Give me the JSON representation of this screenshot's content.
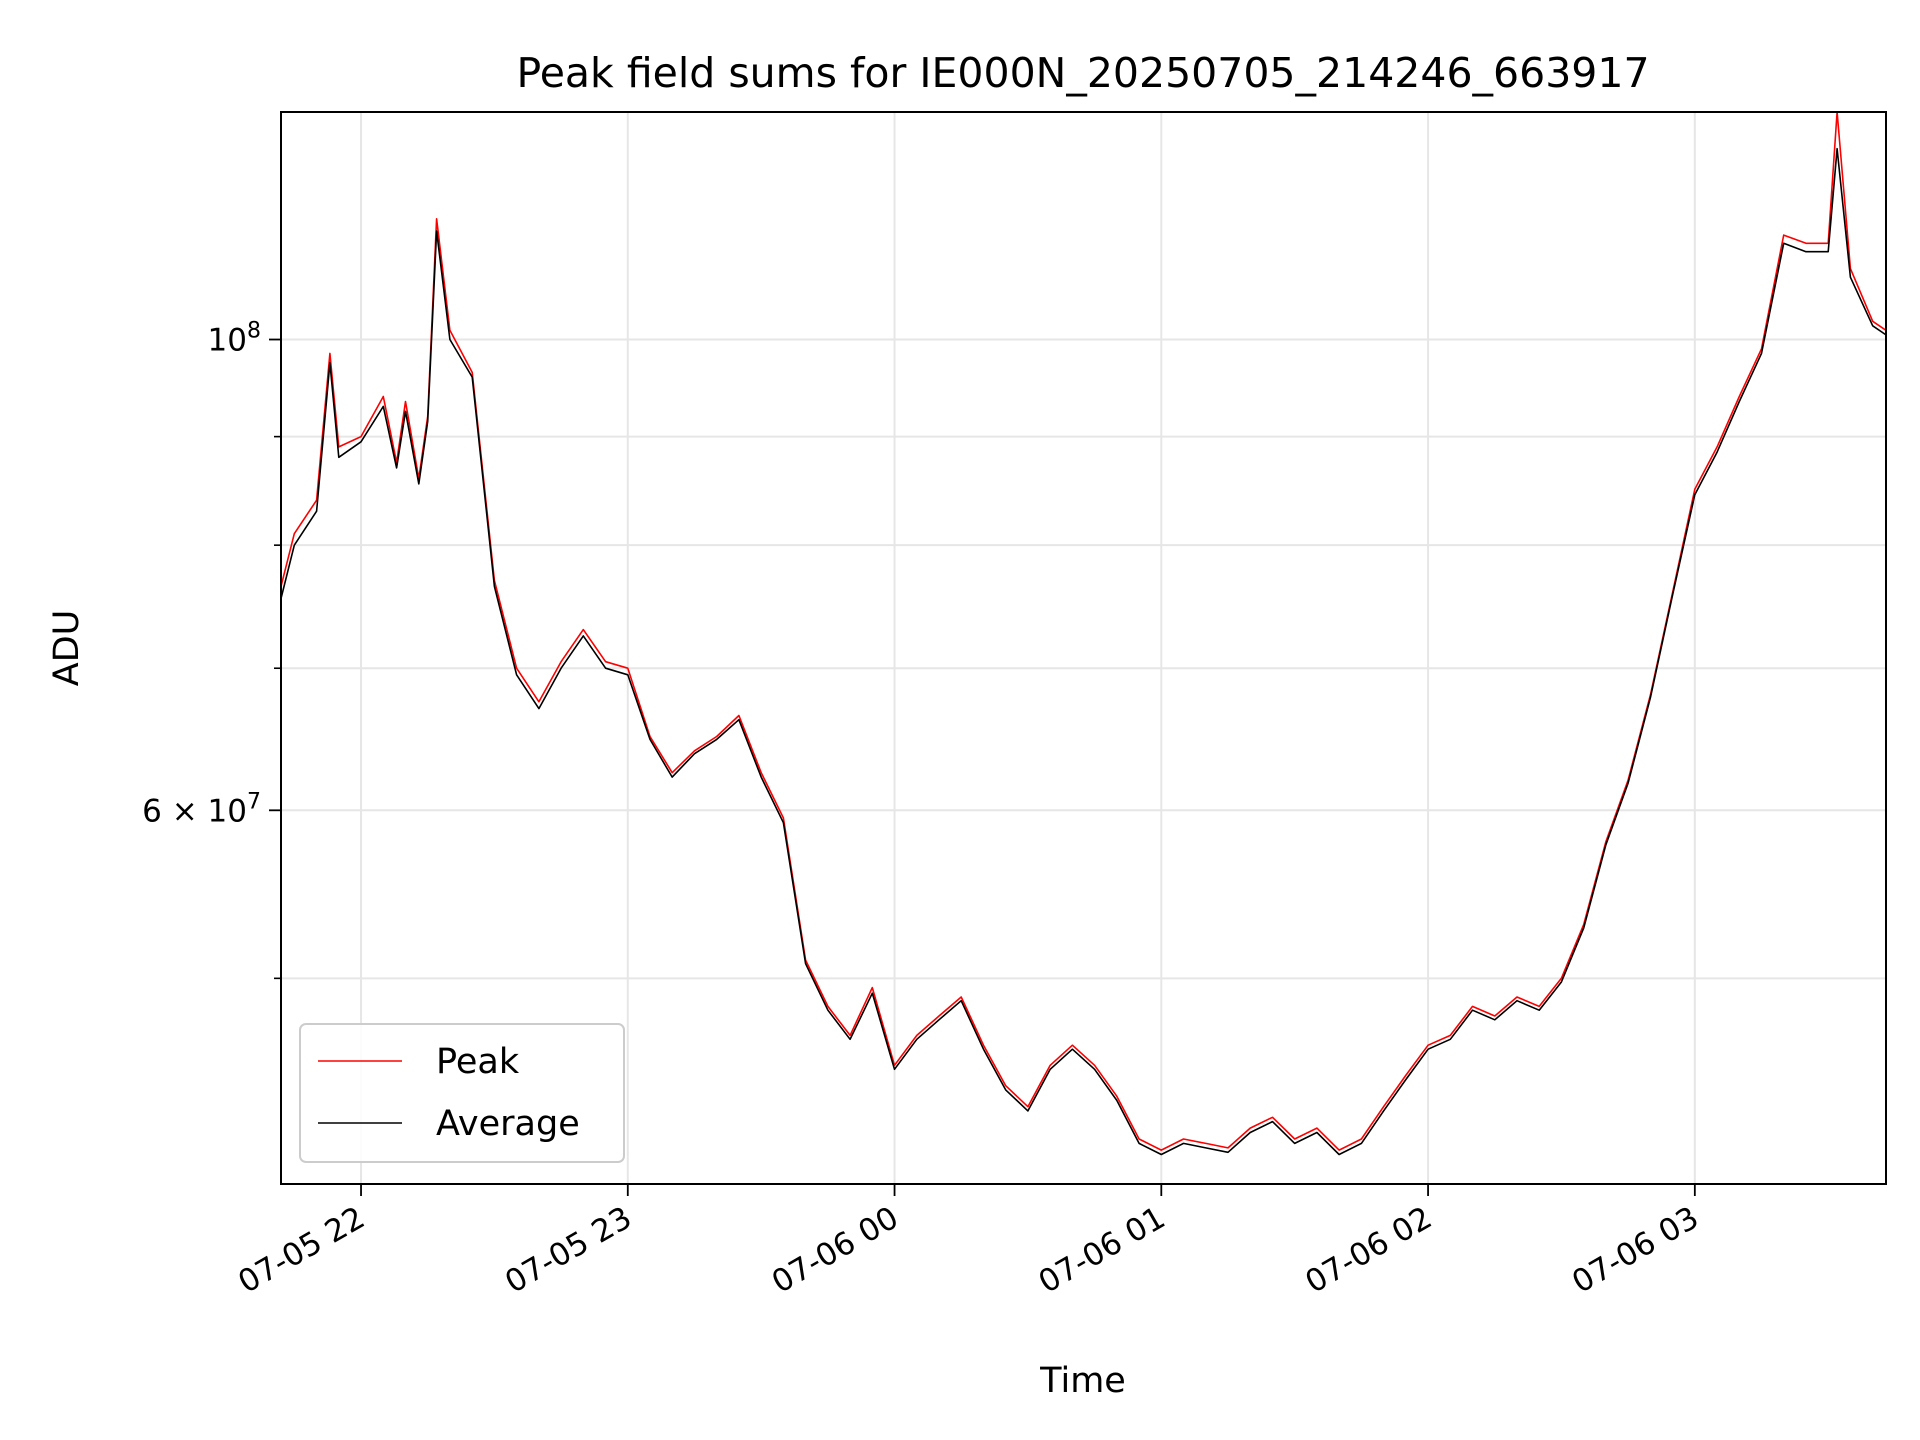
{
  "chart_data": {
    "type": "line",
    "title": "Peak field sums for IE000N_20250705_214246_663917",
    "xlabel": "Time",
    "ylabel": "ADU",
    "y_scale": "log",
    "grid": true,
    "legend_position": "lower-left",
    "x_range": [
      "2025-07-05 21:42",
      "2025-07-06 03:43"
    ],
    "ylim": [
      40000000,
      128000000
    ],
    "x_ticks": [
      {
        "at": "2025-07-05 22:00",
        "label": "07-05 22"
      },
      {
        "at": "2025-07-05 23:00",
        "label": "07-05 23"
      },
      {
        "at": "2025-07-06 00:00",
        "label": "07-06 00"
      },
      {
        "at": "2025-07-06 01:00",
        "label": "07-06 01"
      },
      {
        "at": "2025-07-06 02:00",
        "label": "07-06 02"
      },
      {
        "at": "2025-07-06 03:00",
        "label": "07-06 03"
      }
    ],
    "y_ticks": [
      {
        "value": 60000000,
        "base": "6 × 10",
        "exp": "7"
      },
      {
        "value": 100000000,
        "base": "10",
        "exp": "8"
      }
    ],
    "y_minor_ticks": [
      50000000,
      70000000,
      80000000,
      90000000
    ],
    "series": [
      {
        "name": "Peak",
        "color": "#ff0000",
        "x": [
          "2025-07-05 21:42",
          "2025-07-05 21:45",
          "2025-07-05 21:50",
          "2025-07-05 21:53",
          "2025-07-05 21:55",
          "2025-07-05 22:00",
          "2025-07-05 22:05",
          "2025-07-05 22:08",
          "2025-07-05 22:10",
          "2025-07-05 22:13",
          "2025-07-05 22:15",
          "2025-07-05 22:17",
          "2025-07-05 22:20",
          "2025-07-05 22:25",
          "2025-07-05 22:30",
          "2025-07-05 22:35",
          "2025-07-05 22:40",
          "2025-07-05 22:45",
          "2025-07-05 22:50",
          "2025-07-05 22:55",
          "2025-07-05 23:00",
          "2025-07-05 23:05",
          "2025-07-05 23:10",
          "2025-07-05 23:15",
          "2025-07-05 23:20",
          "2025-07-05 23:25",
          "2025-07-05 23:30",
          "2025-07-05 23:35",
          "2025-07-05 23:40",
          "2025-07-05 23:45",
          "2025-07-05 23:50",
          "2025-07-05 23:55",
          "2025-07-06 00:00",
          "2025-07-06 00:05",
          "2025-07-06 00:10",
          "2025-07-06 00:15",
          "2025-07-06 00:20",
          "2025-07-06 00:25",
          "2025-07-06 00:30",
          "2025-07-06 00:35",
          "2025-07-06 00:40",
          "2025-07-06 00:45",
          "2025-07-06 00:50",
          "2025-07-06 00:55",
          "2025-07-06 01:00",
          "2025-07-06 01:05",
          "2025-07-06 01:10",
          "2025-07-06 01:15",
          "2025-07-06 01:20",
          "2025-07-06 01:25",
          "2025-07-06 01:30",
          "2025-07-06 01:35",
          "2025-07-06 01:40",
          "2025-07-06 01:45",
          "2025-07-06 01:50",
          "2025-07-06 01:55",
          "2025-07-06 02:00",
          "2025-07-06 02:05",
          "2025-07-06 02:10",
          "2025-07-06 02:15",
          "2025-07-06 02:20",
          "2025-07-06 02:25",
          "2025-07-06 02:30",
          "2025-07-06 02:35",
          "2025-07-06 02:40",
          "2025-07-06 02:45",
          "2025-07-06 02:50",
          "2025-07-06 02:55",
          "2025-07-06 03:00",
          "2025-07-06 03:05",
          "2025-07-06 03:10",
          "2025-07-06 03:15",
          "2025-07-06 03:20",
          "2025-07-06 03:25",
          "2025-07-06 03:30",
          "2025-07-06 03:32",
          "2025-07-06 03:35",
          "2025-07-06 03:40",
          "2025-07-06 03:43"
        ],
        "values": [
          76500000,
          81000000,
          84000000,
          98500000,
          89000000,
          90000000,
          94000000,
          87500000,
          93500000,
          86000000,
          92000000,
          114000000,
          101000000,
          96500000,
          77000000,
          70000000,
          67500000,
          70500000,
          73000000,
          70500000,
          70000000,
          65000000,
          62500000,
          64000000,
          65000000,
          66500000,
          62500000,
          59500000,
          51000000,
          48500000,
          47000000,
          49500000,
          45500000,
          47000000,
          48000000,
          49000000,
          46500000,
          44500000,
          43500000,
          45500000,
          46500000,
          45500000,
          44000000,
          42000000,
          41500000,
          42000000,
          41800000,
          41600000,
          42500000,
          43000000,
          42000000,
          42500000,
          41500000,
          42000000,
          43500000,
          45000000,
          46500000,
          47000000,
          48500000,
          48000000,
          49000000,
          48500000,
          50000000,
          53000000,
          58000000,
          62000000,
          68000000,
          76000000,
          85000000,
          89000000,
          94000000,
          99000000,
          112000000,
          111000000,
          111000000,
          128000000,
          108000000,
          102000000,
          101000000
        ]
      },
      {
        "name": "Average",
        "color": "#000000",
        "x": [
          "2025-07-05 21:42",
          "2025-07-05 21:45",
          "2025-07-05 21:50",
          "2025-07-05 21:53",
          "2025-07-05 21:55",
          "2025-07-05 22:00",
          "2025-07-05 22:05",
          "2025-07-05 22:08",
          "2025-07-05 22:10",
          "2025-07-05 22:13",
          "2025-07-05 22:15",
          "2025-07-05 22:17",
          "2025-07-05 22:20",
          "2025-07-05 22:25",
          "2025-07-05 22:30",
          "2025-07-05 22:35",
          "2025-07-05 22:40",
          "2025-07-05 22:45",
          "2025-07-05 22:50",
          "2025-07-05 22:55",
          "2025-07-05 23:00",
          "2025-07-05 23:05",
          "2025-07-05 23:10",
          "2025-07-05 23:15",
          "2025-07-05 23:20",
          "2025-07-05 23:25",
          "2025-07-05 23:30",
          "2025-07-05 23:35",
          "2025-07-05 23:40",
          "2025-07-05 23:45",
          "2025-07-05 23:50",
          "2025-07-05 23:55",
          "2025-07-06 00:00",
          "2025-07-06 00:05",
          "2025-07-06 00:10",
          "2025-07-06 00:15",
          "2025-07-06 00:20",
          "2025-07-06 00:25",
          "2025-07-06 00:30",
          "2025-07-06 00:35",
          "2025-07-06 00:40",
          "2025-07-06 00:45",
          "2025-07-06 00:50",
          "2025-07-06 00:55",
          "2025-07-06 01:00",
          "2025-07-06 01:05",
          "2025-07-06 01:10",
          "2025-07-06 01:15",
          "2025-07-06 01:20",
          "2025-07-06 01:25",
          "2025-07-06 01:30",
          "2025-07-06 01:35",
          "2025-07-06 01:40",
          "2025-07-06 01:45",
          "2025-07-06 01:50",
          "2025-07-06 01:55",
          "2025-07-06 02:00",
          "2025-07-06 02:05",
          "2025-07-06 02:10",
          "2025-07-06 02:15",
          "2025-07-06 02:20",
          "2025-07-06 02:25",
          "2025-07-06 02:30",
          "2025-07-06 02:35",
          "2025-07-06 02:40",
          "2025-07-06 02:45",
          "2025-07-06 02:50",
          "2025-07-06 02:55",
          "2025-07-06 03:00",
          "2025-07-06 03:05",
          "2025-07-06 03:10",
          "2025-07-06 03:15",
          "2025-07-06 03:20",
          "2025-07-06 03:25",
          "2025-07-06 03:30",
          "2025-07-06 03:32",
          "2025-07-06 03:35",
          "2025-07-06 03:40",
          "2025-07-06 03:43"
        ],
        "values": [
          75500000,
          80000000,
          83000000,
          97500000,
          88000000,
          89500000,
          93000000,
          87000000,
          92500000,
          85500000,
          91500000,
          112500000,
          100000000,
          96000000,
          76500000,
          69500000,
          67000000,
          70000000,
          72500000,
          70000000,
          69500000,
          64800000,
          62200000,
          63800000,
          64800000,
          66200000,
          62200000,
          59200000,
          50800000,
          48300000,
          46800000,
          49200000,
          45300000,
          46800000,
          47800000,
          48800000,
          46300000,
          44300000,
          43300000,
          45300000,
          46300000,
          45300000,
          43800000,
          41800000,
          41300000,
          41800000,
          41600000,
          41400000,
          42300000,
          42800000,
          41800000,
          42300000,
          41300000,
          41800000,
          43300000,
          44800000,
          46300000,
          46800000,
          48300000,
          47800000,
          48800000,
          48300000,
          49800000,
          52800000,
          57800000,
          61800000,
          67800000,
          75800000,
          84500000,
          88500000,
          93500000,
          98500000,
          111000000,
          110000000,
          110000000,
          123000000,
          107000000,
          101500000,
          100500000
        ]
      }
    ]
  }
}
